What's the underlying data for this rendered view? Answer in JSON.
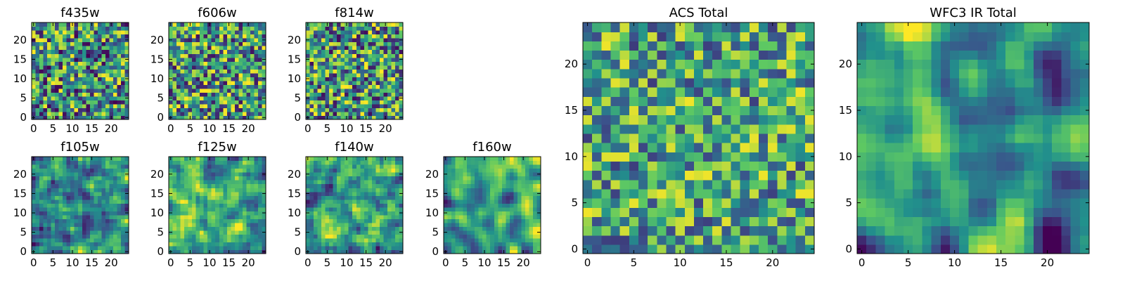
{
  "figure": {
    "colormap": [
      "#440154",
      "#3b528b",
      "#21918c",
      "#5ec962",
      "#fde725"
    ]
  },
  "chart_data": [
    {
      "id": "f435w",
      "type": "heatmap",
      "title": "f435w",
      "size": 25,
      "seed": 11,
      "smooth": 0,
      "bias": 0.0,
      "spread": 1.0,
      "xticks": [
        0,
        5,
        10,
        15,
        20
      ],
      "yticks": [
        0,
        5,
        10,
        15,
        20
      ],
      "xlim": [
        0,
        25
      ],
      "ylim": [
        0,
        25
      ],
      "grid": false
    },
    {
      "id": "f606w",
      "type": "heatmap",
      "title": "f606w",
      "size": 25,
      "seed": 23,
      "smooth": 0,
      "bias": 0.05,
      "spread": 1.0,
      "xticks": [
        0,
        5,
        10,
        15,
        20
      ],
      "yticks": [
        0,
        5,
        10,
        15,
        20
      ],
      "xlim": [
        0,
        25
      ],
      "ylim": [
        0,
        25
      ],
      "grid": false
    },
    {
      "id": "f814w",
      "type": "heatmap",
      "title": "f814w",
      "size": 25,
      "seed": 37,
      "smooth": 0,
      "bias": 0.03,
      "spread": 1.0,
      "xticks": [
        0,
        5,
        10,
        15,
        20
      ],
      "yticks": [
        0,
        5,
        10,
        15,
        20
      ],
      "xlim": [
        0,
        25
      ],
      "ylim": [
        0,
        25
      ],
      "grid": false
    },
    {
      "id": "f105w",
      "type": "heatmap",
      "title": "f105w",
      "size": 25,
      "seed": 41,
      "smooth": 1,
      "bias": 0.02,
      "spread": 1.0,
      "xticks": [
        0,
        5,
        10,
        15,
        20
      ],
      "yticks": [
        0,
        5,
        10,
        15,
        20
      ],
      "xlim": [
        0,
        25
      ],
      "ylim": [
        0,
        25
      ],
      "grid": false
    },
    {
      "id": "f125w",
      "type": "heatmap",
      "title": "f125w",
      "size": 25,
      "seed": 53,
      "smooth": 1,
      "bias": 0.08,
      "spread": 1.0,
      "xticks": [
        0,
        5,
        10,
        15,
        20
      ],
      "yticks": [
        0,
        5,
        10,
        15,
        20
      ],
      "xlim": [
        0,
        25
      ],
      "ylim": [
        0,
        25
      ],
      "grid": false
    },
    {
      "id": "f140w",
      "type": "heatmap",
      "title": "f140w",
      "size": 25,
      "seed": 67,
      "smooth": 1,
      "bias": 0.04,
      "spread": 1.0,
      "xticks": [
        0,
        5,
        10,
        15,
        20
      ],
      "yticks": [
        0,
        5,
        10,
        15,
        20
      ],
      "xlim": [
        0,
        25
      ],
      "ylim": [
        0,
        25
      ],
      "grid": false
    },
    {
      "id": "f160w",
      "type": "heatmap",
      "title": "f160w",
      "size": 25,
      "seed": 79,
      "smooth": 2,
      "bias": 0.06,
      "spread": 1.0,
      "xticks": [
        0,
        5,
        10,
        15,
        20
      ],
      "yticks": [
        0,
        5,
        10,
        15,
        20
      ],
      "xlim": [
        0,
        25
      ],
      "ylim": [
        0,
        25
      ],
      "grid": false
    },
    {
      "id": "acs-total",
      "type": "heatmap",
      "title": "ACS Total",
      "size": 25,
      "seed": 97,
      "smooth": 0,
      "bias": 0.08,
      "spread": 0.8,
      "xticks": [
        0,
        5,
        10,
        15,
        20
      ],
      "yticks": [
        0,
        5,
        10,
        15,
        20
      ],
      "xlim": [
        0,
        25
      ],
      "ylim": [
        0,
        25
      ],
      "grid": false
    },
    {
      "id": "wfc3-ir-total",
      "type": "heatmap",
      "title": "WFC3 IR Total",
      "size": 25,
      "seed": 131,
      "smooth": 2,
      "bias": 0.0,
      "spread": 1.2,
      "xticks": [
        0,
        5,
        10,
        15,
        20
      ],
      "yticks": [
        0,
        5,
        10,
        15,
        20
      ],
      "xlim": [
        0,
        25
      ],
      "ylim": [
        0,
        25
      ],
      "grid": false
    }
  ]
}
